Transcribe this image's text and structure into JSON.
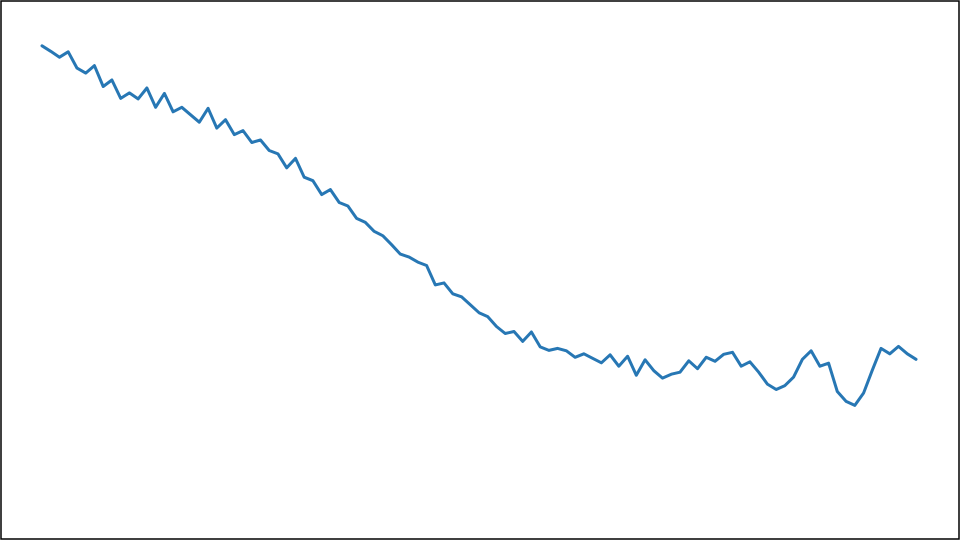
{
  "chart_data": {
    "type": "line",
    "title": "",
    "xlabel": "",
    "ylabel": "",
    "grid": false,
    "legend": "none",
    "axes_visible": false,
    "xlim": [
      0,
      500
    ],
    "ylim": [
      0,
      100
    ],
    "series": [
      {
        "color": "#2777b4",
        "x": [
          0,
          5,
          10,
          15,
          20,
          25,
          30,
          35,
          40,
          45,
          50,
          55,
          60,
          65,
          70,
          75,
          80,
          85,
          90,
          95,
          100,
          105,
          110,
          115,
          120,
          125,
          130,
          135,
          140,
          145,
          150,
          155,
          160,
          165,
          170,
          175,
          180,
          185,
          190,
          195,
          200,
          205,
          210,
          215,
          220,
          225,
          230,
          235,
          240,
          245,
          250,
          255,
          260,
          265,
          270,
          275,
          280,
          285,
          290,
          295,
          300,
          305,
          310,
          315,
          320,
          325,
          330,
          335,
          340,
          345,
          350,
          355,
          360,
          365,
          370,
          375,
          380,
          385,
          390,
          395,
          400,
          405,
          410,
          415,
          420,
          425,
          430,
          435,
          440,
          445,
          450,
          455,
          460,
          465,
          470,
          475,
          480,
          485,
          490,
          495,
          500
        ],
        "y": [
          95.2,
          94.1,
          92.9,
          94.0,
          90.7,
          89.7,
          91.2,
          87.0,
          88.3,
          84.6,
          85.7,
          84.5,
          86.7,
          82.8,
          85.6,
          81.9,
          82.8,
          81.3,
          79.8,
          82.6,
          78.6,
          80.3,
          77.3,
          78.1,
          75.7,
          76.2,
          74.1,
          73.4,
          70.6,
          72.5,
          68.7,
          68.0,
          65.2,
          66.2,
          63.6,
          62.9,
          60.4,
          59.6,
          57.8,
          56.9,
          55.1,
          53.2,
          52.6,
          51.6,
          50.9,
          47.0,
          47.4,
          45.2,
          44.6,
          43.0,
          41.4,
          40.6,
          38.6,
          37.2,
          37.6,
          35.6,
          37.5,
          34.5,
          33.8,
          34.2,
          33.7,
          32.4,
          33.1,
          32.2,
          31.3,
          32.9,
          30.6,
          32.6,
          28.8,
          31.9,
          29.7,
          28.2,
          29.0,
          29.4,
          31.7,
          30.1,
          32.4,
          31.6,
          33.0,
          33.4,
          30.6,
          31.5,
          29.4,
          27.0,
          25.9,
          26.7,
          28.4,
          32.0,
          33.7,
          30.6,
          31.2,
          25.5,
          23.5,
          22.7,
          25.2,
          29.8,
          34.2,
          33.1,
          34.6,
          33.1,
          32.0
        ]
      }
    ]
  }
}
